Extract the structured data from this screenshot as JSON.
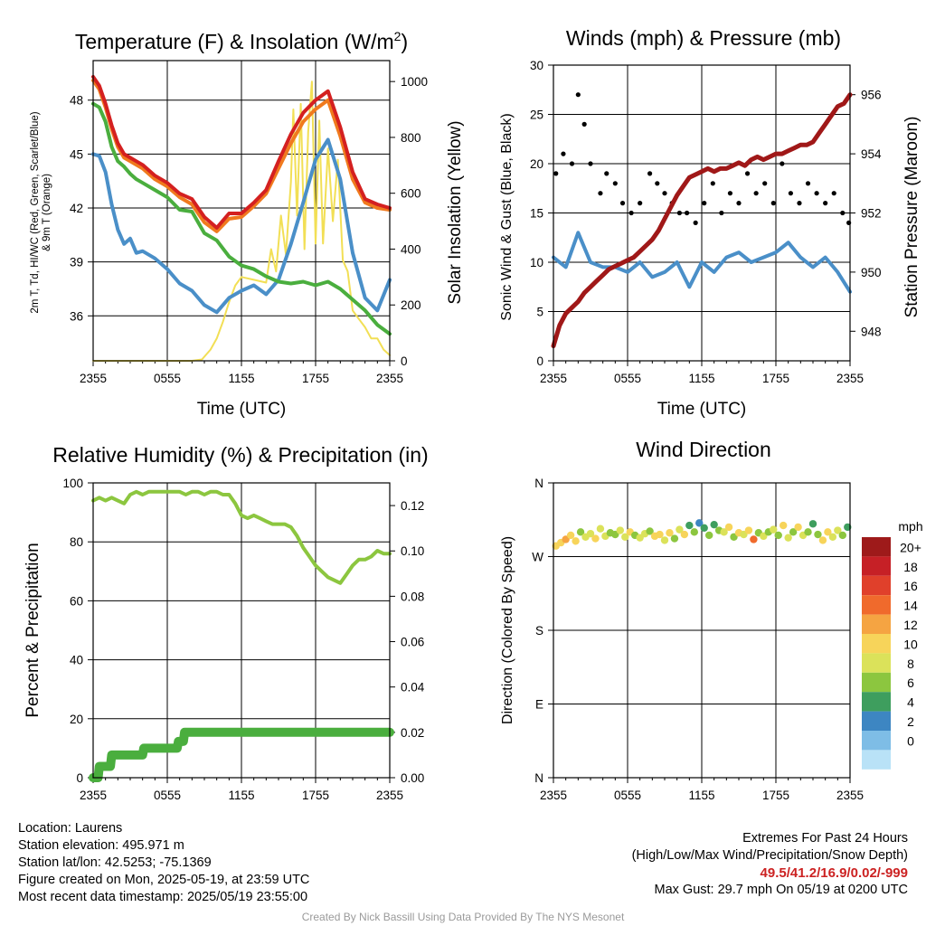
{
  "colors": {
    "red": "#d42020",
    "orange": "#f07a1e",
    "green": "#4aae3e",
    "blue": "#4a8fc8",
    "yellow": "#f2df55",
    "black": "#000000",
    "maroon": "#a01818",
    "rh": "#8cc63f",
    "precip": "#4aae3e"
  },
  "info": {
    "location": "Location: Laurens",
    "elevation": "Station elevation: 495.971 m",
    "latlon": "Station lat/lon: 42.5253; -75.1369",
    "created": "Figure created on Mon, 2025-05-19, at 23:59 UTC",
    "recent": "Most recent data timestamp: 2025/05/19 23:55:00"
  },
  "extremes": {
    "title": "Extremes For Past 24 Hours",
    "subtitle": "(High/Low/Max Wind/Precipitation/Snow Depth)",
    "values": "49.5/41.2/16.9/0.02/-999",
    "gust": "Max Gust: 29.7 mph On 05/19 at 0200 UTC"
  },
  "credit": "Created By Nick Bassill Using Data Provided By The NYS Mesonet",
  "chart_data": [
    {
      "type": "line",
      "title": "Temperature (F) & Insolation (W/m²)",
      "title_main": "Temperature (F) & Insolation (W/m",
      "title_sup": "2",
      "title_end": ")",
      "xlabel": "Time (UTC)",
      "ylabel_line1": "2m T, Td, HI/WC (Red, Green, Scarlet/Blue)",
      "ylabel_line2": "& 9m T (Orange)",
      "ylabel_right": "Solar Insolation (Yellow)",
      "x_ticks": [
        "2355",
        "0555",
        "1155",
        "1755",
        "2355"
      ],
      "x_range": [
        0,
        24
      ],
      "ylim": [
        33.5,
        50.2
      ],
      "y_ticks": [
        36,
        39,
        42,
        45,
        48
      ],
      "y2lim": [
        0,
        1075
      ],
      "y2_ticks": [
        0,
        200,
        400,
        600,
        800,
        1000
      ],
      "series": [
        {
          "name": "2m T",
          "color": "red",
          "axis": "left",
          "x": [
            0,
            0.5,
            1,
            1.5,
            2,
            2.5,
            3,
            3.5,
            4,
            5,
            6,
            7,
            8,
            9,
            10,
            11,
            12,
            13,
            14,
            15,
            16,
            17,
            18,
            19,
            20,
            21,
            22,
            23,
            24
          ],
          "values": [
            49.3,
            48.8,
            47.8,
            46.6,
            45.6,
            45.0,
            44.8,
            44.6,
            44.4,
            43.8,
            43.4,
            42.8,
            42.5,
            41.5,
            40.9,
            41.7,
            41.7,
            42.3,
            43.0,
            44.6,
            46.1,
            47.3,
            48.0,
            48.5,
            46.5,
            44.0,
            42.5,
            42.2,
            42.0
          ]
        },
        {
          "name": "9m T",
          "color": "orange",
          "axis": "left",
          "x": [
            0,
            0.5,
            1,
            1.5,
            2,
            2.5,
            3,
            3.5,
            4,
            5,
            6,
            7,
            8,
            9,
            10,
            11,
            12,
            13,
            14,
            15,
            16,
            17,
            18,
            19,
            20,
            21,
            22,
            23,
            24
          ],
          "values": [
            49.1,
            48.6,
            47.6,
            46.4,
            45.4,
            44.8,
            44.6,
            44.4,
            44.2,
            43.6,
            43.2,
            42.6,
            42.2,
            41.2,
            40.7,
            41.4,
            41.5,
            42.1,
            42.8,
            44.2,
            45.6,
            46.8,
            47.5,
            48.0,
            46.0,
            43.6,
            42.3,
            42.0,
            41.9
          ]
        },
        {
          "name": "Td",
          "color": "green",
          "axis": "left",
          "x": [
            0,
            0.5,
            1,
            1.5,
            2,
            2.5,
            3,
            3.5,
            4,
            5,
            6,
            7,
            8,
            9,
            10,
            11,
            12,
            13,
            14,
            15,
            16,
            17,
            18,
            19,
            20,
            21,
            22,
            23,
            24
          ],
          "values": [
            47.8,
            47.6,
            46.8,
            45.4,
            44.6,
            44.3,
            43.9,
            43.6,
            43.4,
            43.0,
            42.6,
            41.9,
            41.8,
            40.6,
            40.2,
            39.3,
            38.8,
            38.6,
            38.2,
            37.9,
            37.8,
            37.9,
            37.7,
            37.9,
            37.5,
            36.9,
            36.3,
            35.5,
            35.0
          ]
        },
        {
          "name": "HI/WC",
          "color": "blue",
          "axis": "left",
          "x": [
            0,
            0.5,
            1,
            1.5,
            2,
            2.5,
            3,
            3.5,
            4,
            5,
            6,
            7,
            8,
            9,
            10,
            11,
            12,
            13,
            14,
            15,
            16,
            17,
            18,
            19,
            20,
            21,
            22,
            23,
            24
          ],
          "values": [
            45.0,
            44.9,
            44.0,
            42.2,
            40.8,
            40.0,
            40.3,
            39.5,
            39.6,
            39.2,
            38.6,
            37.8,
            37.4,
            36.6,
            36.2,
            37.0,
            37.4,
            37.7,
            37.2,
            38.0,
            40.0,
            42.3,
            44.7,
            45.8,
            43.6,
            39.5,
            37.0,
            36.3,
            38.0
          ]
        },
        {
          "name": "Solar Insolation",
          "color": "yellow",
          "axis": "right",
          "x": [
            0,
            8,
            8.8,
            9.5,
            10,
            10.5,
            11,
            11.5,
            12,
            13,
            14,
            14.4,
            14.8,
            15.2,
            15.6,
            16,
            16.2,
            16.5,
            16.8,
            17.1,
            17.4,
            17.7,
            18,
            18.3,
            18.6,
            19,
            19.4,
            19.8,
            20.2,
            20.6,
            21,
            21.5,
            22,
            22.5,
            23,
            23.5,
            24
          ],
          "values": [
            0,
            0,
            5,
            40,
            80,
            140,
            210,
            270,
            300,
            290,
            280,
            400,
            320,
            520,
            380,
            640,
            900,
            520,
            920,
            400,
            820,
            1000,
            420,
            860,
            420,
            760,
            500,
            720,
            360,
            320,
            180,
            150,
            120,
            80,
            80,
            40,
            20
          ]
        }
      ]
    },
    {
      "type": "line",
      "title": "Winds (mph) & Pressure (mb)",
      "xlabel": "Time (UTC)",
      "ylabel": "Sonic Wind & Gust (Blue, Black)",
      "ylabel_right": "Station Pressure (Maroon)",
      "x_ticks": [
        "2355",
        "0555",
        "1155",
        "1755",
        "2355"
      ],
      "x_range": [
        0,
        24
      ],
      "ylim": [
        0,
        30
      ],
      "y_ticks": [
        0,
        5,
        10,
        15,
        20,
        25,
        30
      ],
      "y2lim": [
        947.0,
        957.0
      ],
      "y2_ticks": [
        948,
        950,
        952,
        954,
        956
      ],
      "series": [
        {
          "name": "Station Pressure",
          "color": "maroon",
          "axis": "right",
          "x": [
            0,
            0.5,
            1,
            1.5,
            2,
            2.5,
            3,
            3.5,
            4,
            4.5,
            5,
            5.5,
            6,
            6.5,
            7,
            7.5,
            8,
            8.5,
            9,
            9.5,
            10,
            10.5,
            11,
            11.5,
            12,
            12.5,
            13,
            13.5,
            14,
            14.5,
            15,
            15.5,
            16,
            16.5,
            17,
            17.5,
            18,
            18.5,
            19,
            19.5,
            20,
            20.5,
            21,
            21.5,
            22,
            22.5,
            23,
            23.5,
            24
          ],
          "values": [
            947.5,
            948.2,
            948.6,
            948.8,
            949.0,
            949.3,
            949.5,
            949.7,
            949.9,
            950.1,
            950.2,
            950.3,
            950.4,
            950.5,
            950.7,
            950.9,
            951.1,
            951.4,
            951.8,
            952.2,
            952.6,
            952.9,
            953.2,
            953.3,
            953.4,
            953.5,
            953.4,
            953.5,
            953.5,
            953.6,
            953.7,
            953.6,
            953.8,
            953.9,
            953.8,
            953.9,
            954.0,
            954.0,
            954.1,
            954.2,
            954.3,
            954.3,
            954.4,
            954.7,
            955.0,
            955.3,
            955.6,
            955.7,
            956.0
          ]
        },
        {
          "name": "Sonic Wind",
          "color": "blue",
          "axis": "left",
          "x": [
            0,
            1,
            2,
            3,
            4,
            5,
            6,
            7,
            8,
            9,
            10,
            11,
            12,
            13,
            14,
            15,
            16,
            17,
            18,
            19,
            20,
            21,
            22,
            23,
            24
          ],
          "values": [
            10.5,
            9.5,
            13.0,
            10.0,
            9.5,
            9.5,
            9.0,
            10.0,
            8.5,
            9.0,
            10.0,
            7.5,
            10.0,
            9.0,
            10.5,
            11.0,
            10.0,
            10.5,
            11.0,
            12.0,
            10.5,
            9.5,
            10.5,
            9.0,
            7.0
          ]
        },
        {
          "name": "Gust",
          "color": "black",
          "axis": "left",
          "style": "dots",
          "x": [
            0.2,
            0.8,
            1.5,
            2.0,
            2.5,
            3.0,
            3.8,
            4.3,
            5.0,
            5.6,
            6.3,
            7.0,
            7.8,
            8.4,
            9.0,
            9.6,
            10.2,
            10.8,
            11.5,
            12.2,
            12.9,
            13.6,
            14.3,
            15.0,
            15.7,
            16.4,
            17.1,
            17.8,
            18.5,
            19.2,
            19.9,
            20.6,
            21.3,
            22.0,
            22.7,
            23.4,
            23.9
          ],
          "values": [
            19,
            21,
            20,
            27,
            24,
            20,
            17,
            19,
            18,
            16,
            15,
            16,
            19,
            18,
            17,
            16,
            15,
            15,
            14,
            16,
            18,
            15,
            17,
            16,
            19,
            17,
            18,
            16,
            20,
            17,
            16,
            18,
            17,
            16,
            17,
            15,
            14
          ]
        }
      ]
    },
    {
      "type": "line",
      "title": "Relative Humidity (%) & Precipitation (in)",
      "ylabel": "Percent & Precipitation",
      "x_ticks": [
        "2355",
        "0555",
        "1155",
        "1755",
        "2355"
      ],
      "x_range": [
        0,
        24
      ],
      "ylim": [
        0,
        100
      ],
      "y_ticks": [
        0,
        20,
        40,
        60,
        80,
        100
      ],
      "y2lim": [
        0,
        0.13
      ],
      "y2_ticks": [
        0.0,
        0.02,
        0.04,
        0.06,
        0.08,
        0.1,
        0.12
      ],
      "series": [
        {
          "name": "RH",
          "color": "rh",
          "axis": "left",
          "x": [
            0,
            0.5,
            1,
            1.5,
            2,
            2.5,
            3,
            3.5,
            4,
            4.5,
            5,
            5.5,
            6,
            6.5,
            7,
            7.5,
            8,
            8.5,
            9,
            9.5,
            10,
            10.5,
            11,
            11.5,
            12,
            12.5,
            13,
            13.5,
            14,
            14.5,
            15,
            15.5,
            16,
            16.5,
            17,
            17.5,
            18,
            18.5,
            19,
            19.5,
            20,
            20.5,
            21,
            21.5,
            22,
            22.5,
            23,
            23.5,
            24
          ],
          "values": [
            94,
            95,
            94,
            95,
            94,
            93,
            96,
            97,
            96,
            97,
            97,
            97,
            97,
            97,
            97,
            96,
            97,
            97,
            96,
            97,
            97,
            96,
            96,
            93,
            89,
            88,
            89,
            88,
            87,
            86,
            86,
            86,
            85,
            82,
            78,
            75,
            72,
            70,
            68,
            67,
            66,
            69,
            72,
            74,
            74,
            75,
            77,
            76,
            76
          ]
        },
        {
          "name": "Precipitation",
          "color": "precip",
          "axis": "right",
          "x": [
            0,
            0.4,
            0.5,
            1.4,
            1.5,
            4.0,
            4.1,
            6.8,
            6.9,
            7.3,
            7.4,
            24
          ],
          "values": [
            0.0,
            0.0,
            0.005,
            0.005,
            0.01,
            0.01,
            0.013,
            0.013,
            0.016,
            0.016,
            0.02,
            0.02
          ]
        }
      ]
    },
    {
      "type": "scatter",
      "title": "Wind Direction",
      "ylabel": "Direction (Colored By Speed)",
      "x_ticks": [
        "2355",
        "0555",
        "1155",
        "1755",
        "2355"
      ],
      "x_range": [
        0,
        24
      ],
      "ylim": [
        0,
        360
      ],
      "y_ticks": [
        "N",
        "E",
        "S",
        "W",
        "N"
      ],
      "y_tick_values": [
        0,
        90,
        180,
        270,
        360
      ],
      "colorbar": {
        "title": "mph",
        "labels": [
          "20+",
          "18",
          "16",
          "14",
          "12",
          "10",
          "8",
          "6",
          "4",
          "2",
          "0"
        ],
        "colors": [
          "#9e1a1a",
          "#c62026",
          "#e0402b",
          "#f06a2c",
          "#f5a442",
          "#f7d45a",
          "#dbe25a",
          "#8cc63f",
          "#3e9e5e",
          "#3d86c2",
          "#7ebde6",
          "#b9e2f7"
        ]
      },
      "series": [
        {
          "name": "Direction",
          "x": [
            0.2,
            0.6,
            1.0,
            1.4,
            1.8,
            2.2,
            2.6,
            3.0,
            3.4,
            3.8,
            4.2,
            4.6,
            5.0,
            5.4,
            5.8,
            6.2,
            6.6,
            7.0,
            7.4,
            7.8,
            8.2,
            8.6,
            9.0,
            9.4,
            9.8,
            10.2,
            10.6,
            11.0,
            11.4,
            11.8,
            12.2,
            12.6,
            13.0,
            13.4,
            13.8,
            14.2,
            14.6,
            15.0,
            15.4,
            15.8,
            16.2,
            16.6,
            17.0,
            17.4,
            17.8,
            18.2,
            18.6,
            19.0,
            19.4,
            19.8,
            20.2,
            20.6,
            21.0,
            21.4,
            21.8,
            22.2,
            22.6,
            23.0,
            23.4,
            23.8
          ],
          "values": [
            283,
            287,
            291,
            296,
            289,
            300,
            294,
            298,
            292,
            304,
            295,
            299,
            297,
            302,
            294,
            300,
            296,
            293,
            298,
            301,
            295,
            297,
            290,
            299,
            292,
            303,
            297,
            308,
            300,
            311,
            305,
            296,
            309,
            302,
            300,
            306,
            294,
            299,
            297,
            302,
            291,
            299,
            295,
            300,
            303,
            296,
            308,
            293,
            300,
            306,
            296,
            300,
            310,
            297,
            290,
            300,
            294,
            302,
            296,
            306
          ],
          "speeds": [
            13,
            12,
            14,
            12,
            13,
            9,
            11,
            10,
            12,
            10,
            11,
            9,
            8,
            11,
            10,
            12,
            9,
            10,
            11,
            8,
            12,
            13,
            11,
            12,
            9,
            10,
            12,
            6,
            9,
            5,
            6,
            8,
            7,
            8,
            10,
            12,
            9,
            13,
            10,
            12,
            16,
            8,
            11,
            9,
            10,
            8,
            13,
            11,
            9,
            12,
            10,
            8,
            7,
            9,
            13,
            12,
            10,
            11,
            8,
            6
          ]
        }
      ]
    }
  ]
}
